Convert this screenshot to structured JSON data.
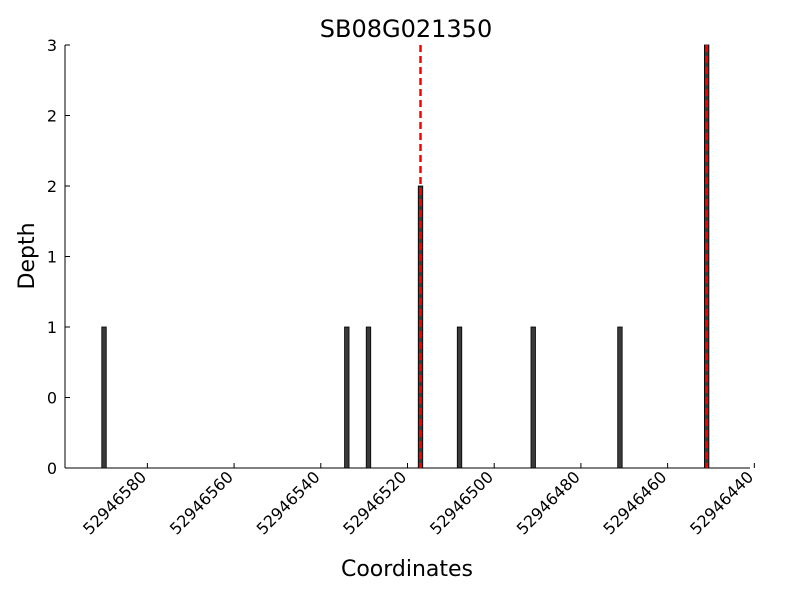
{
  "chart_data": {
    "type": "bar",
    "title": "SB08G021350",
    "xlabel": "Coordinates",
    "ylabel": "Depth",
    "x_axis_reversed": true,
    "xlim": [
      52946599,
      52946441
    ],
    "ylim": [
      0,
      3
    ],
    "x_ticks": [
      52946580,
      52946560,
      52946540,
      52946520,
      52946500,
      52946480,
      52946460,
      52946440
    ],
    "y_ticks": [
      0,
      0.5,
      1,
      1.5,
      2,
      2.5,
      3
    ],
    "y_tick_labels": [
      "0",
      "0",
      "1",
      "1",
      "2",
      "2",
      "3"
    ],
    "bars": [
      {
        "x": 52946590,
        "depth": 1
      },
      {
        "x": 52946534,
        "depth": 1
      },
      {
        "x": 52946529,
        "depth": 1
      },
      {
        "x": 52946517,
        "depth": 2
      },
      {
        "x": 52946508,
        "depth": 1
      },
      {
        "x": 52946491,
        "depth": 1
      },
      {
        "x": 52946471,
        "depth": 1
      },
      {
        "x": 52946451,
        "depth": 3
      }
    ],
    "vertical_markers": [
      52946517,
      52946451
    ],
    "bar_color": "#3a3a3a",
    "marker_color": "#ff0000",
    "grid": false
  }
}
